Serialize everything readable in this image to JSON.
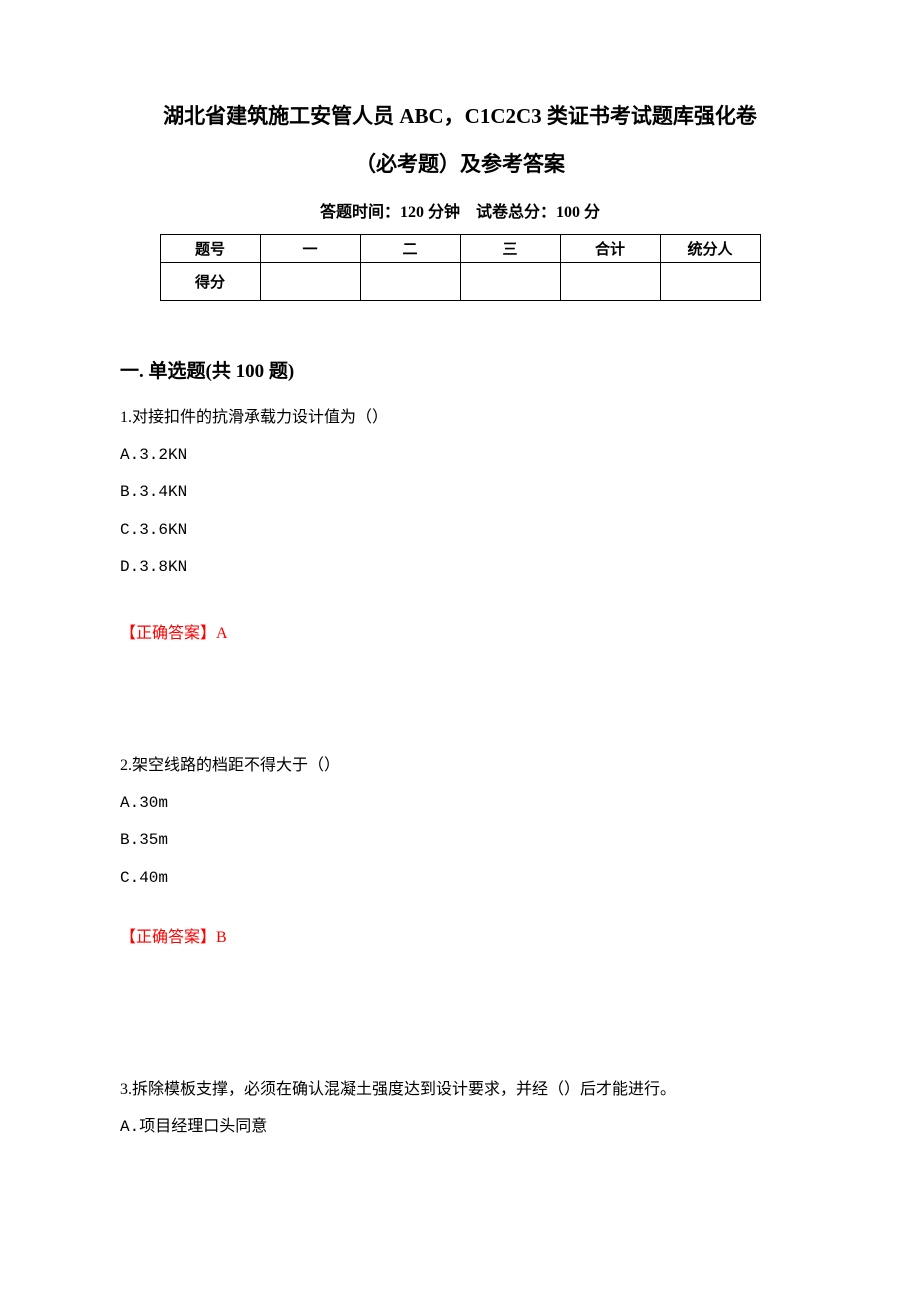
{
  "header": {
    "title_line1": "湖北省建筑施工安管人员 ABC，C1C2C3 类证书考试题库强化卷",
    "title_line2": "（必考题）及参考答案",
    "subtitle": "答题时间：120 分钟 试卷总分：100 分"
  },
  "score_table": {
    "row_labels": [
      "题号",
      "得分"
    ],
    "columns": [
      "一",
      "二",
      "三",
      "合计",
      "统分人"
    ],
    "styling": {
      "border_color": "#000000",
      "cell_font_size": 15
    }
  },
  "section": {
    "heading": "一. 单选题(共 100 题)"
  },
  "questions": [
    {
      "number": "1.",
      "text": "对接扣件的抗滑承载力设计值为（）",
      "options": [
        "A.3.2KN",
        "B.3.4KN",
        "C.3.6KN",
        "D.3.8KN"
      ],
      "answer_label": "【正确答案】",
      "answer_value": "A"
    },
    {
      "number": "2.",
      "text": "架空线路的档距不得大于（）",
      "options": [
        "A.30m",
        "B.35m",
        "C.40m"
      ],
      "answer_label": "【正确答案】",
      "answer_value": "B"
    },
    {
      "number": "3.",
      "text": "拆除模板支撑，必须在确认混凝土强度达到设计要求，并经（）后才能进行。",
      "options": [
        "A.项目经理口头同意"
      ],
      "answer_label": "",
      "answer_value": ""
    }
  ],
  "colors": {
    "text_black": "#000000",
    "answer_red": "#ff0000",
    "background": "#ffffff"
  },
  "typography": {
    "title_fontsize": 21,
    "body_fontsize": 16,
    "section_heading_fontsize": 19
  }
}
